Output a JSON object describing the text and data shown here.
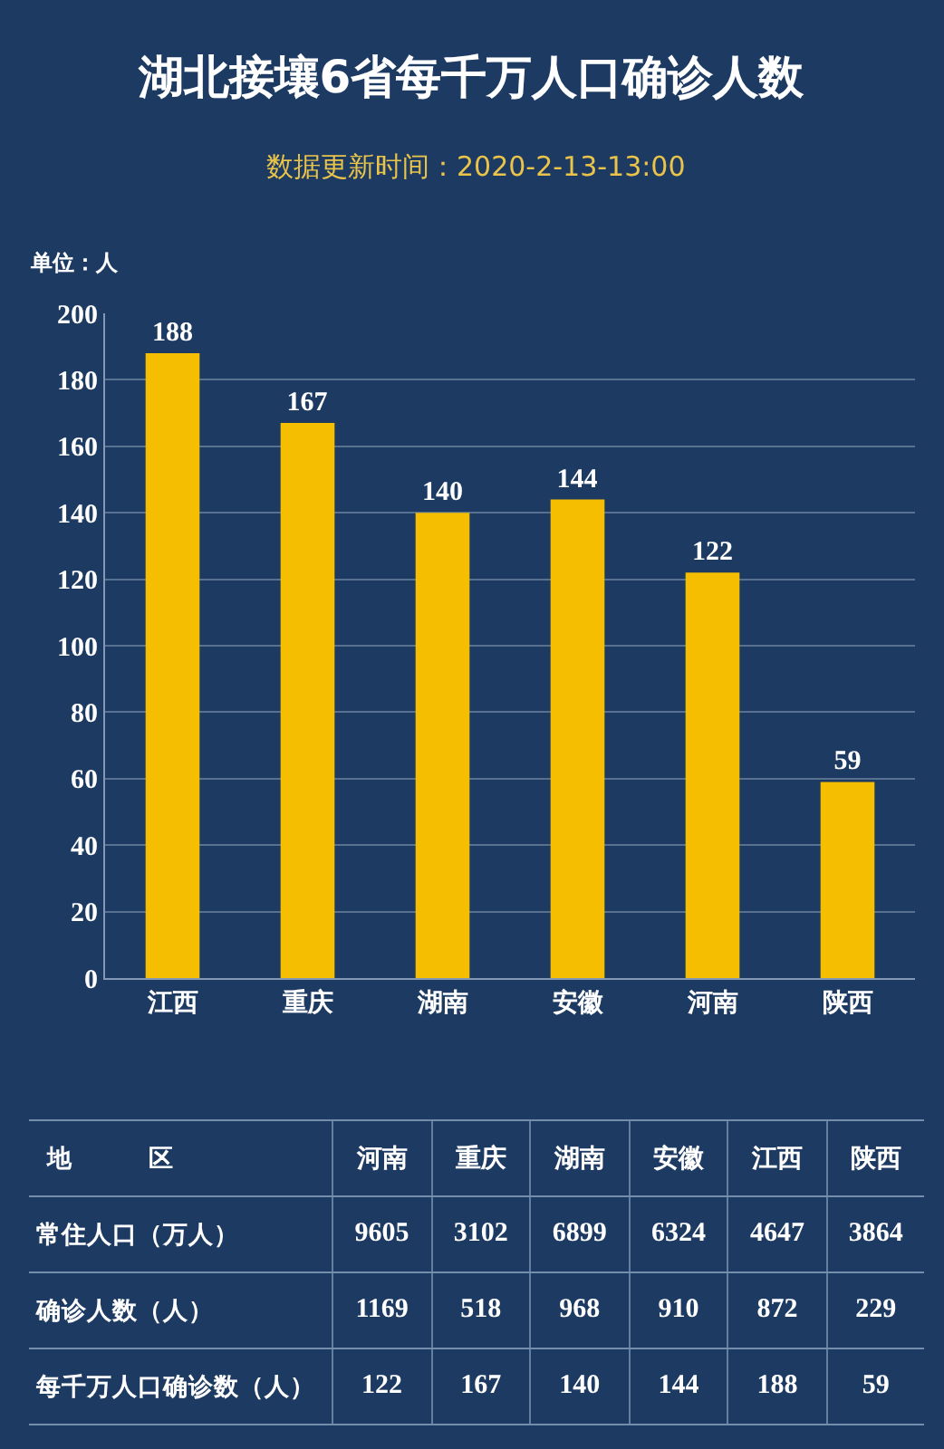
{
  "chart_data": [
    {
      "type": "bar",
      "title": "湖北接壤6省每千万人口确诊人数",
      "subtitle": "数据更新时间：2020-2-13-13:00",
      "ylabel": "单位：人",
      "categories": [
        "江西",
        "重庆",
        "湖南",
        "安徽",
        "河南",
        "陕西"
      ],
      "values": [
        188,
        167,
        140,
        144,
        122,
        59
      ],
      "color": "#f5be00",
      "ylim": [
        0,
        200
      ],
      "yticks": [
        0,
        20,
        40,
        60,
        80,
        100,
        120,
        140,
        160,
        180,
        200
      ],
      "grid": "y",
      "data_labels": true
    },
    {
      "type": "other",
      "legend_title": "地　区",
      "categories": [
        "河南",
        "重庆",
        "湖南",
        "安徽",
        "江西",
        "陕西"
      ],
      "series": [
        {
          "name": "常住人口（万人）",
          "values": [
            9605,
            3102,
            6899,
            6324,
            4647,
            3864
          ]
        },
        {
          "name": "确诊人数（人）",
          "values": [
            1169,
            518,
            968,
            910,
            872,
            229
          ]
        },
        {
          "name": "每千万人口确诊数（人）",
          "values": [
            122,
            167,
            140,
            144,
            188,
            59
          ]
        }
      ],
      "data_labels": true
    }
  ]
}
